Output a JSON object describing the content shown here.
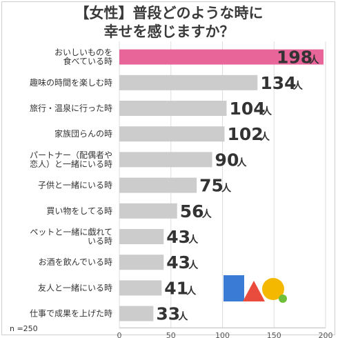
{
  "title": {
    "line1": "【女性】普段どのような時に",
    "line2": "幸せを感じますか？"
  },
  "note": "n =250",
  "chart_data": {
    "type": "bar",
    "orientation": "horizontal",
    "categories": [
      [
        "おいしいものを",
        "食べている時"
      ],
      [
        "趣味の時間を楽しむ時"
      ],
      [
        "旅行・温泉に行った時"
      ],
      [
        "家族団らんの時"
      ],
      [
        "パートナー（配偶者や",
        "恋人）と一緒にいる時"
      ],
      [
        "子供と一緒にいる時"
      ],
      [
        "買い物をしてる時"
      ],
      [
        "ペットと一緒に戯れて",
        "いる時"
      ],
      [
        "お酒を飲んでいる時"
      ],
      [
        "友人と一緒にいる時"
      ],
      [
        "仕事で成果を上げた時"
      ]
    ],
    "values": [
      198,
      134,
      104,
      102,
      90,
      75,
      56,
      43,
      43,
      41,
      33
    ],
    "unit": "人",
    "xlim": [
      0,
      200
    ],
    "xticks": [
      0,
      50,
      100,
      150,
      200
    ],
    "highlight_index": 0,
    "colors": {
      "highlight": "#e8659a",
      "bar": "#cccccc",
      "grid": "#dddddd"
    }
  }
}
